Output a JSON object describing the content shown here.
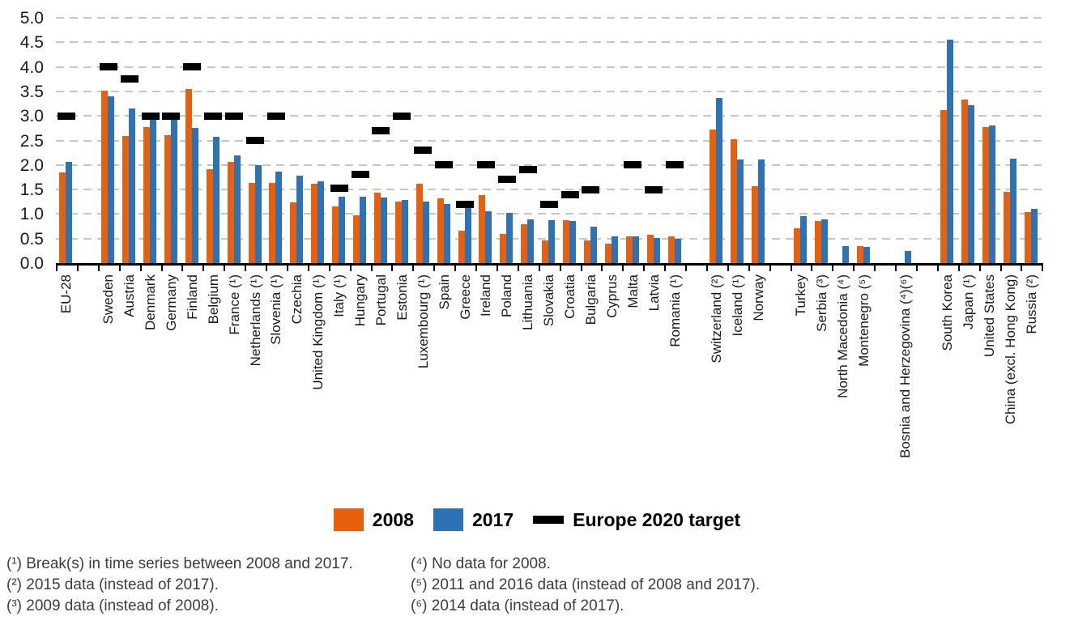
{
  "chart_data": {
    "type": "bar",
    "series_names": [
      "2008",
      "2017",
      "Europe 2020 target"
    ],
    "colors": {
      "2008": "#e8600e",
      "2017": "#2d72b4",
      "target": "#000000",
      "gridline": "#c6c6c6"
    },
    "ylabel": "",
    "ylim": [
      0.0,
      5.0
    ],
    "ytick_step": 0.5,
    "ytick_labels": [
      "0.0",
      "0.5",
      "1.0",
      "1.5",
      "2.0",
      "2.5",
      "3.0",
      "3.5",
      "4.0",
      "4.5",
      "5.0"
    ],
    "grid": "horizontal-dashed",
    "legend_position": "bottom",
    "groups": [
      {
        "label": "EU-28",
        "v2008": 1.84,
        "v2017": 2.07,
        "target": 3.0
      },
      {
        "gap": true
      },
      {
        "label": "Sweden",
        "v2008": 3.52,
        "v2017": 3.4,
        "target": 4.0
      },
      {
        "label": "Austria",
        "v2008": 2.59,
        "v2017": 3.16,
        "target": 3.76
      },
      {
        "label": "Denmark",
        "v2008": 2.77,
        "v2017": 3.05,
        "target": 3.0
      },
      {
        "label": "Germany",
        "v2008": 2.61,
        "v2017": 3.02,
        "target": 3.0
      },
      {
        "label": "Finland",
        "v2008": 3.55,
        "v2017": 2.76,
        "target": 4.0
      },
      {
        "label": "Belgium",
        "v2008": 1.92,
        "v2017": 2.58,
        "target": 3.0
      },
      {
        "label": "France (¹)",
        "v2008": 2.06,
        "v2017": 2.19,
        "target": 3.0
      },
      {
        "label": "Netherlands (¹)",
        "v2008": 1.64,
        "v2017": 1.99,
        "target": 2.5
      },
      {
        "label": "Slovenia (¹)",
        "v2008": 1.63,
        "v2017": 1.86,
        "target": 3.0
      },
      {
        "label": "Czechia",
        "v2008": 1.24,
        "v2017": 1.79,
        "target": null
      },
      {
        "label": "United Kingdom (¹)",
        "v2008": 1.62,
        "v2017": 1.66,
        "target": null
      },
      {
        "label": "Italy (¹)",
        "v2008": 1.16,
        "v2017": 1.35,
        "target": 1.53
      },
      {
        "label": "Hungary",
        "v2008": 0.98,
        "v2017": 1.35,
        "target": 1.8
      },
      {
        "label": "Portugal",
        "v2008": 1.44,
        "v2017": 1.33,
        "target": 2.7
      },
      {
        "label": "Estonia",
        "v2008": 1.26,
        "v2017": 1.29,
        "target": 3.0
      },
      {
        "label": "Luxembourg (¹)",
        "v2008": 1.62,
        "v2017": 1.26,
        "target": 2.3
      },
      {
        "label": "Spain",
        "v2008": 1.32,
        "v2017": 1.2,
        "target": 2.0
      },
      {
        "label": "Greece",
        "v2008": 0.66,
        "v2017": 1.13,
        "target": 1.2
      },
      {
        "label": "Ireland",
        "v2008": 1.39,
        "v2017": 1.05,
        "target": 2.0
      },
      {
        "label": "Poland",
        "v2008": 0.6,
        "v2017": 1.03,
        "target": 1.7
      },
      {
        "label": "Lithuania",
        "v2008": 0.79,
        "v2017": 0.89,
        "target": 1.9
      },
      {
        "label": "Slovakia",
        "v2008": 0.46,
        "v2017": 0.88,
        "target": 1.2
      },
      {
        "label": "Croatia",
        "v2008": 0.88,
        "v2017": 0.86,
        "target": 1.4
      },
      {
        "label": "Bulgaria",
        "v2008": 0.46,
        "v2017": 0.75,
        "target": 1.5
      },
      {
        "label": "Cyprus",
        "v2008": 0.39,
        "v2017": 0.55,
        "target": null
      },
      {
        "label": "Malta",
        "v2008": 0.55,
        "v2017": 0.54,
        "target": 2.0
      },
      {
        "label": "Latvia",
        "v2008": 0.58,
        "v2017": 0.51,
        "target": 1.5
      },
      {
        "label": "Romania (¹)",
        "v2008": 0.55,
        "v2017": 0.5,
        "target": 2.0
      },
      {
        "gap": true
      },
      {
        "label": "Switzerland (²)",
        "v2008": 2.73,
        "v2017": 3.37,
        "target": null
      },
      {
        "label": "Iceland (¹)",
        "v2008": 2.52,
        "v2017": 2.11,
        "target": null
      },
      {
        "label": "Norway",
        "v2008": 1.56,
        "v2017": 2.11,
        "target": null
      },
      {
        "gap": true
      },
      {
        "label": "Turkey",
        "v2008": 0.71,
        "v2017": 0.96,
        "target": null
      },
      {
        "label": "Serbia (³)",
        "v2008": 0.85,
        "v2017": 0.89,
        "target": null
      },
      {
        "label": "North Macedonia (⁴)",
        "v2008": null,
        "v2017": 0.35,
        "target": null
      },
      {
        "label": "Montenegro (⁵)",
        "v2008": 0.35,
        "v2017": 0.33,
        "target": null
      },
      {
        "gap": true
      },
      {
        "label": "Bosnia and Herzegovina (⁴)(⁶)",
        "v2008": null,
        "v2017": 0.24,
        "target": null
      },
      {
        "gap": true
      },
      {
        "label": "South Korea",
        "v2008": 3.12,
        "v2017": 4.55,
        "target": null
      },
      {
        "label": "Japan (¹)",
        "v2008": 3.34,
        "v2017": 3.21,
        "target": null
      },
      {
        "label": "United States",
        "v2008": 2.77,
        "v2017": 2.81,
        "target": null
      },
      {
        "label": "China (excl. Hong Kong)",
        "v2008": 1.45,
        "v2017": 2.13,
        "target": null
      },
      {
        "label": "Russia (²)",
        "v2008": 1.04,
        "v2017": 1.1,
        "target": null
      }
    ]
  },
  "legend": {
    "items": [
      {
        "label": "2008",
        "color": "#e8600e",
        "shape": "square"
      },
      {
        "label": "2017",
        "color": "#2d72b4",
        "shape": "square"
      },
      {
        "label": "Europe 2020 target",
        "color": "#000000",
        "shape": "dash"
      }
    ]
  },
  "footnotes": {
    "left": [
      "(¹) Break(s) in time series between 2008 and 2017.",
      "(²) 2015 data (instead of 2017).",
      "(³) 2009 data (instead of 2008)."
    ],
    "right": [
      "(⁴) No data for 2008.",
      "(⁵) 2011 and 2016 data (instead of 2008 and 2017).",
      "(⁶) 2014 data (instead of 2017)."
    ]
  }
}
